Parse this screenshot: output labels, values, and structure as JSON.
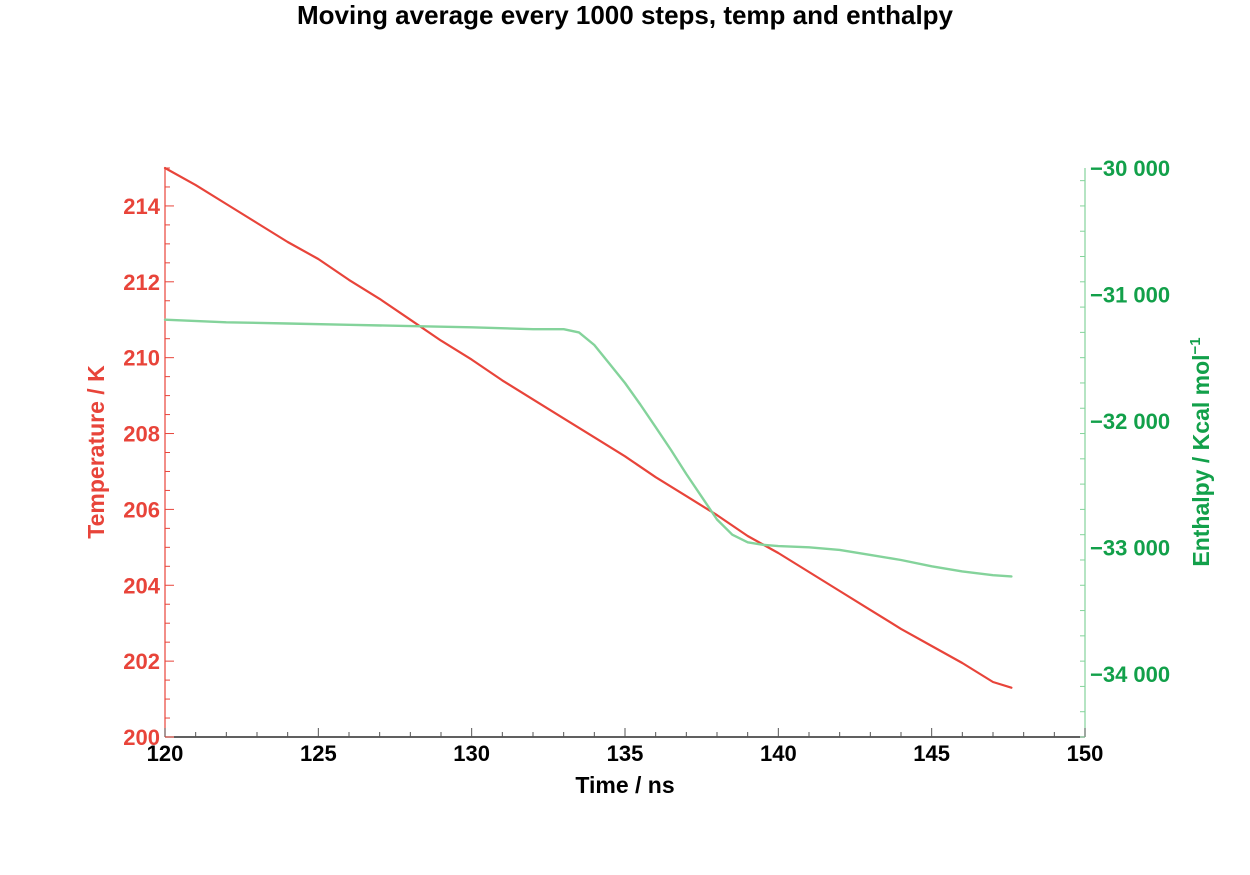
{
  "chart_data": {
    "type": "line",
    "title": "Moving average every 1000 steps, temp and enthalpy",
    "xlabel": "Time / ns",
    "ylabel_left": "Temperature / K",
    "ylabel_right": {
      "base": "Enthalpy / Kcal mol",
      "superscript": "−1"
    },
    "xlim": [
      120,
      150
    ],
    "ylim_left": [
      200,
      215
    ],
    "ylim_right": [
      -34500,
      -30000
    ],
    "x_ticks": [
      120,
      125,
      130,
      135,
      140,
      145,
      150
    ],
    "y_ticks_left": [
      200,
      202,
      204,
      206,
      208,
      210,
      212,
      214
    ],
    "y_ticks_right": [
      -34000,
      -33000,
      -32000,
      -31000,
      -30000
    ],
    "x_tick_labels": [
      "120",
      "125",
      "130",
      "135",
      "140",
      "145",
      "150"
    ],
    "y_tick_labels_left": [
      "200",
      "202",
      "204",
      "206",
      "208",
      "210",
      "212",
      "214"
    ],
    "y_tick_labels_right": [
      "−34 000",
      "−33 000",
      "−32 000",
      "−31 000",
      "−30 000"
    ],
    "grid": false,
    "colors": {
      "temperature": "#e8443a",
      "enthalpy": "#84d39b",
      "left_axis": "#e8443a",
      "right_axis": "#12a04a",
      "x_axis": "#000000"
    },
    "series": [
      {
        "axis": "left",
        "x": [
          120,
          121,
          122,
          123,
          124,
          125,
          126,
          127,
          128,
          129,
          130,
          131,
          132,
          133,
          134,
          135,
          136,
          137,
          138,
          139,
          140,
          141,
          142,
          143,
          144,
          145,
          146,
          147,
          147.6
        ],
        "values": [
          215.0,
          214.55,
          214.05,
          213.55,
          213.05,
          212.6,
          212.05,
          211.55,
          211.0,
          210.45,
          209.95,
          209.4,
          208.9,
          208.4,
          207.9,
          207.4,
          206.85,
          206.35,
          205.85,
          205.3,
          204.85,
          204.35,
          203.85,
          203.35,
          202.85,
          202.4,
          201.95,
          201.45,
          201.3
        ]
      },
      {
        "axis": "right",
        "x": [
          120,
          122,
          124,
          126,
          128,
          130,
          132,
          133,
          133.5,
          134,
          134.5,
          135,
          135.5,
          136,
          136.5,
          137,
          137.5,
          138,
          138.5,
          139,
          139.5,
          140,
          141,
          142,
          143,
          144,
          145,
          146,
          147,
          147.6
        ],
        "values": [
          -31200,
          -31220,
          -31230,
          -31240,
          -31250,
          -31260,
          -31275,
          -31275,
          -31300,
          -31400,
          -31550,
          -31700,
          -31870,
          -32050,
          -32230,
          -32420,
          -32600,
          -32780,
          -32900,
          -32960,
          -32980,
          -32990,
          -33000,
          -33020,
          -33060,
          -33100,
          -33150,
          -33190,
          -33220,
          -33230
        ]
      }
    ]
  }
}
